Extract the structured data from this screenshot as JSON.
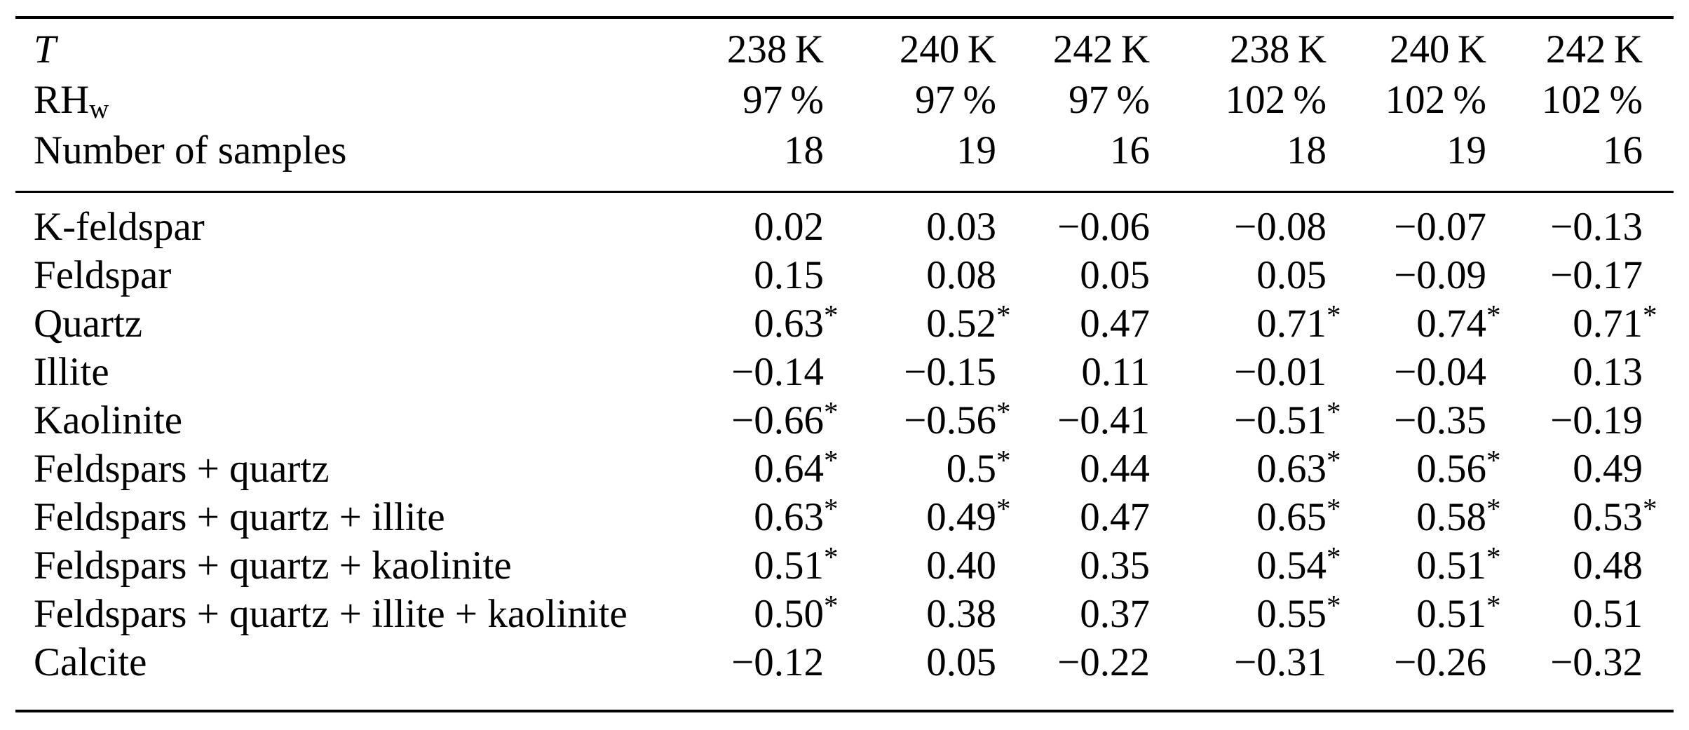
{
  "table": {
    "header_rows": [
      {
        "label": "T",
        "label_style": "italic",
        "values": [
          "238 K",
          "240 K",
          "242 K",
          "238 K",
          "240 K",
          "242 K"
        ]
      },
      {
        "label": "RH",
        "label_sub": "w",
        "values": [
          "97 %",
          "97 %",
          "97 %",
          "102 %",
          "102 %",
          "102 %"
        ]
      },
      {
        "label": "Number of samples",
        "values": [
          "18",
          "19",
          "16",
          "18",
          "19",
          "16"
        ]
      }
    ],
    "body_rows": [
      {
        "label": "K-feldspar",
        "values": [
          "0.02",
          "0.03",
          "−0.06",
          "−0.08",
          "−0.07",
          "−0.13"
        ]
      },
      {
        "label": "Feldspar",
        "values": [
          "0.15",
          "0.08",
          "0.05",
          "0.05",
          "−0.09",
          "−0.17"
        ]
      },
      {
        "label": "Quartz",
        "values": [
          "0.63*",
          "0.52*",
          "0.47",
          "0.71*",
          "0.74*",
          "0.71*"
        ]
      },
      {
        "label": "Illite",
        "values": [
          "−0.14",
          "−0.15",
          "0.11",
          "−0.01",
          "−0.04",
          "0.13"
        ]
      },
      {
        "label": "Kaolinite",
        "values": [
          "−0.66*",
          "−0.56*",
          "−0.41",
          "−0.51*",
          "−0.35",
          "−0.19"
        ]
      },
      {
        "label": "Feldspars + quartz",
        "values": [
          "0.64*",
          "0.5*",
          "0.44",
          "0.63*",
          "0.56*",
          "0.49"
        ]
      },
      {
        "label": "Feldspars + quartz + illite",
        "values": [
          "0.63*",
          "0.49*",
          "0.47",
          "0.65*",
          "0.58*",
          "0.53*"
        ]
      },
      {
        "label": "Feldspars + quartz + kaolinite",
        "values": [
          "0.51*",
          "0.40",
          "0.35",
          "0.54*",
          "0.51*",
          "0.48"
        ]
      },
      {
        "label": "Feldspars + quartz + illite + kaolinite",
        "values": [
          "0.50*",
          "0.38",
          "0.37",
          "0.55*",
          "0.51*",
          "0.51"
        ]
      },
      {
        "label": "Calcite",
        "values": [
          "−0.12",
          "0.05",
          "−0.22",
          "−0.31",
          "−0.26",
          "−0.32"
        ]
      }
    ]
  }
}
